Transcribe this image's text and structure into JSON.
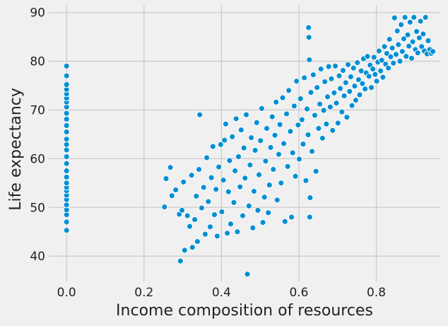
{
  "chart_data": {
    "type": "scatter",
    "title": "",
    "xlabel": "Income composition of resources",
    "ylabel": "Life expectancy",
    "xlim": [
      -0.046,
      0.965
    ],
    "ylim": [
      34.8,
      91.4
    ],
    "xticks": [
      0.0,
      0.2,
      0.4,
      0.6,
      0.8
    ],
    "xtick_labels": [
      "0.0",
      "0.2",
      "0.4",
      "0.6",
      "0.8"
    ],
    "yticks": [
      40,
      50,
      60,
      70,
      80,
      90
    ],
    "ytick_labels": [
      "40",
      "50",
      "60",
      "70",
      "80",
      "90"
    ],
    "grid": true,
    "legend": "none",
    "marker_color": "#008fd5",
    "marker_edge": "#ffffff",
    "background": "#f0f0f0",
    "grid_color": "#cbcbcb",
    "points": [
      [
        0.0,
        45.3
      ],
      [
        0.0,
        47.0
      ],
      [
        0.0,
        48.5
      ],
      [
        0.0,
        49.5
      ],
      [
        0.0,
        50.5
      ],
      [
        0.0,
        51.6
      ],
      [
        0.0,
        52.5
      ],
      [
        0.0,
        53.4
      ],
      [
        0.0,
        54.1
      ],
      [
        0.0,
        55.0
      ],
      [
        0.0,
        56.2
      ],
      [
        0.0,
        57.5
      ],
      [
        0.0,
        59.0
      ],
      [
        0.0,
        60.4
      ],
      [
        0.0,
        61.8
      ],
      [
        0.0,
        62.9
      ],
      [
        0.0,
        64.0
      ],
      [
        0.0,
        65.5
      ],
      [
        0.0,
        66.8
      ],
      [
        0.0,
        68.1
      ],
      [
        0.0,
        69.3
      ],
      [
        0.0,
        70.6
      ],
      [
        0.0,
        71.6
      ],
      [
        0.0,
        72.4
      ],
      [
        0.0,
        73.3
      ],
      [
        0.0,
        74.2
      ],
      [
        0.0,
        75.2
      ],
      [
        0.0,
        77.0
      ],
      [
        0.0,
        79.0
      ],
      [
        0.253,
        50.1
      ],
      [
        0.257,
        55.9
      ],
      [
        0.268,
        58.2
      ],
      [
        0.272,
        52.4
      ],
      [
        0.282,
        53.6
      ],
      [
        0.291,
        48.6
      ],
      [
        0.294,
        39.0
      ],
      [
        0.298,
        49.4
      ],
      [
        0.302,
        55.2
      ],
      [
        0.305,
        41.2
      ],
      [
        0.312,
        48.3
      ],
      [
        0.318,
        46.1
      ],
      [
        0.323,
        56.6
      ],
      [
        0.325,
        41.8
      ],
      [
        0.331,
        47.5
      ],
      [
        0.335,
        52.3
      ],
      [
        0.338,
        43.0
      ],
      [
        0.342,
        57.8
      ],
      [
        0.344,
        69.0
      ],
      [
        0.349,
        49.9
      ],
      [
        0.354,
        54.1
      ],
      [
        0.358,
        44.5
      ],
      [
        0.362,
        60.2
      ],
      [
        0.366,
        51.2
      ],
      [
        0.371,
        46.0
      ],
      [
        0.374,
        56.1
      ],
      [
        0.378,
        62.5
      ],
      [
        0.382,
        48.5
      ],
      [
        0.386,
        53.7
      ],
      [
        0.389,
        44.1
      ],
      [
        0.393,
        58.3
      ],
      [
        0.398,
        62.9
      ],
      [
        0.401,
        49.1
      ],
      [
        0.405,
        55.6
      ],
      [
        0.408,
        63.8
      ],
      [
        0.411,
        67.1
      ],
      [
        0.415,
        44.7
      ],
      [
        0.418,
        53.2
      ],
      [
        0.421,
        59.6
      ],
      [
        0.424,
        46.6
      ],
      [
        0.428,
        64.5
      ],
      [
        0.432,
        51.0
      ],
      [
        0.435,
        57.5
      ],
      [
        0.438,
        68.2
      ],
      [
        0.441,
        45.0
      ],
      [
        0.444,
        60.4
      ],
      [
        0.448,
        54.2
      ],
      [
        0.451,
        65.9
      ],
      [
        0.455,
        48.3
      ],
      [
        0.458,
        62.2
      ],
      [
        0.461,
        56.0
      ],
      [
        0.464,
        69.0
      ],
      [
        0.467,
        36.3
      ],
      [
        0.471,
        50.3
      ],
      [
        0.474,
        58.7
      ],
      [
        0.477,
        64.3
      ],
      [
        0.481,
        45.8
      ],
      [
        0.484,
        53.3
      ],
      [
        0.487,
        61.7
      ],
      [
        0.491,
        67.4
      ],
      [
        0.494,
        49.4
      ],
      [
        0.497,
        56.7
      ],
      [
        0.501,
        63.7
      ],
      [
        0.504,
        70.3
      ],
      [
        0.507,
        46.9
      ],
      [
        0.511,
        52.1
      ],
      [
        0.514,
        59.5
      ],
      [
        0.517,
        66.2
      ],
      [
        0.521,
        48.9
      ],
      [
        0.524,
        54.6
      ],
      [
        0.527,
        62.3
      ],
      [
        0.531,
        68.6
      ],
      [
        0.534,
        57.8
      ],
      [
        0.538,
        64.8
      ],
      [
        0.541,
        71.6
      ],
      [
        0.544,
        51.5
      ],
      [
        0.548,
        60.9
      ],
      [
        0.551,
        67.0
      ],
      [
        0.554,
        55.0
      ],
      [
        0.558,
        72.5
      ],
      [
        0.561,
        63.1
      ],
      [
        0.564,
        47.1
      ],
      [
        0.568,
        69.2
      ],
      [
        0.571,
        58.4
      ],
      [
        0.574,
        74.0
      ],
      [
        0.578,
        65.6
      ],
      [
        0.581,
        48.0
      ],
      [
        0.584,
        61.2
      ],
      [
        0.588,
        70.8
      ],
      [
        0.591,
        56.4
      ],
      [
        0.594,
        75.9
      ],
      [
        0.598,
        66.9
      ],
      [
        0.601,
        59.9
      ],
      [
        0.604,
        72.3
      ],
      [
        0.608,
        68.0
      ],
      [
        0.611,
        63.0
      ],
      [
        0.614,
        76.6
      ],
      [
        0.618,
        55.5
      ],
      [
        0.621,
        70.2
      ],
      [
        0.624,
        64.9
      ],
      [
        0.625,
        86.9
      ],
      [
        0.626,
        84.9
      ],
      [
        0.627,
        80.3
      ],
      [
        0.628,
        48.0
      ],
      [
        0.629,
        52.0
      ],
      [
        0.631,
        73.6
      ],
      [
        0.634,
        61.5
      ],
      [
        0.637,
        77.2
      ],
      [
        0.641,
        68.9
      ],
      [
        0.644,
        57.4
      ],
      [
        0.647,
        74.6
      ],
      [
        0.651,
        66.2
      ],
      [
        0.654,
        71.2
      ],
      [
        0.657,
        78.4
      ],
      [
        0.661,
        64.2
      ],
      [
        0.664,
        69.9
      ],
      [
        0.667,
        75.8
      ],
      [
        0.671,
        67.1
      ],
      [
        0.674,
        72.7
      ],
      [
        0.677,
        78.9
      ],
      [
        0.681,
        70.6
      ],
      [
        0.684,
        76.4
      ],
      [
        0.687,
        65.8
      ],
      [
        0.691,
        73.5
      ],
      [
        0.694,
        79.0
      ],
      [
        0.697,
        71.4
      ],
      [
        0.701,
        67.3
      ],
      [
        0.704,
        77.0
      ],
      [
        0.707,
        74.4
      ],
      [
        0.711,
        69.6
      ],
      [
        0.714,
        78.1
      ],
      [
        0.717,
        72.9
      ],
      [
        0.721,
        75.6
      ],
      [
        0.724,
        68.5
      ],
      [
        0.727,
        79.3
      ],
      [
        0.731,
        73.8
      ],
      [
        0.734,
        76.8
      ],
      [
        0.737,
        70.9
      ],
      [
        0.741,
        78.6
      ],
      [
        0.744,
        74.9
      ],
      [
        0.747,
        72.0
      ],
      [
        0.751,
        79.7
      ],
      [
        0.754,
        76.2
      ],
      [
        0.757,
        73.1
      ],
      [
        0.761,
        78.0
      ],
      [
        0.764,
        75.4
      ],
      [
        0.767,
        80.5
      ],
      [
        0.771,
        74.3
      ],
      [
        0.774,
        77.6
      ],
      [
        0.777,
        81.0
      ],
      [
        0.781,
        76.9
      ],
      [
        0.784,
        79.2
      ],
      [
        0.787,
        74.6
      ],
      [
        0.791,
        78.4
      ],
      [
        0.794,
        80.8
      ],
      [
        0.797,
        77.3
      ],
      [
        0.801,
        75.9
      ],
      [
        0.804,
        79.8
      ],
      [
        0.807,
        82.1
      ],
      [
        0.811,
        78.0
      ],
      [
        0.814,
        80.2
      ],
      [
        0.817,
        76.7
      ],
      [
        0.821,
        83.0
      ],
      [
        0.824,
        79.4
      ],
      [
        0.827,
        81.6
      ],
      [
        0.831,
        78.6
      ],
      [
        0.834,
        84.5
      ],
      [
        0.837,
        80.9
      ],
      [
        0.841,
        82.7
      ],
      [
        0.844,
        79.6
      ],
      [
        0.847,
        88.9
      ],
      [
        0.851,
        81.4
      ],
      [
        0.854,
        86.2
      ],
      [
        0.857,
        83.4
      ],
      [
        0.861,
        80.0
      ],
      [
        0.864,
        87.5
      ],
      [
        0.867,
        82.0
      ],
      [
        0.871,
        84.6
      ],
      [
        0.874,
        89.0
      ],
      [
        0.877,
        81.0
      ],
      [
        0.881,
        85.4
      ],
      [
        0.884,
        83.1
      ],
      [
        0.887,
        88.0
      ],
      [
        0.891,
        80.6
      ],
      [
        0.894,
        84.0
      ],
      [
        0.897,
        89.0
      ],
      [
        0.901,
        82.4
      ],
      [
        0.904,
        86.1
      ],
      [
        0.907,
        81.7
      ],
      [
        0.911,
        84.8
      ],
      [
        0.914,
        88.2
      ],
      [
        0.917,
        83.0
      ],
      [
        0.921,
        85.6
      ],
      [
        0.924,
        82.1
      ],
      [
        0.927,
        89.0
      ],
      [
        0.931,
        81.5
      ],
      [
        0.934,
        84.2
      ],
      [
        0.938,
        82.4
      ],
      [
        0.942,
        81.6
      ],
      [
        0.946,
        82.0
      ]
    ]
  }
}
